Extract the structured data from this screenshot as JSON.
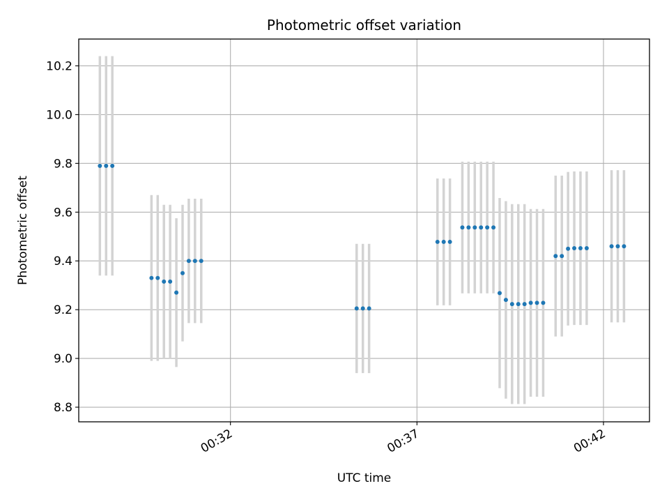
{
  "chart_data": {
    "type": "scatter",
    "title": "Photometric offset variation",
    "xlabel": "UTC time",
    "ylabel": "Photometric offset",
    "xlim": [
      "00:27:56",
      "00:43:14"
    ],
    "ylim": [
      8.74,
      10.31
    ],
    "x_ticks": [
      "00:32",
      "00:37",
      "00:42"
    ],
    "y_ticks": [
      8.8,
      9.0,
      9.2,
      9.4,
      9.6,
      9.8,
      10.0,
      10.2
    ],
    "grid": true,
    "colors": {
      "points": "#1f77b4",
      "errorbars": "#d3d3d3",
      "grid": "#b0b0b0"
    },
    "series": [
      {
        "x": [
          "00:28:30",
          "00:28:40",
          "00:28:50",
          "00:29:53",
          "00:30:03",
          "00:30:13",
          "00:30:23",
          "00:30:33",
          "00:30:43",
          "00:30:53",
          "00:31:03",
          "00:31:13",
          "00:35:23",
          "00:35:33",
          "00:35:43",
          "00:37:33",
          "00:37:43",
          "00:37:53",
          "00:38:13",
          "00:38:23",
          "00:38:33",
          "00:38:43",
          "00:38:53",
          "00:39:03",
          "00:39:13",
          "00:39:23",
          "00:39:33",
          "00:39:43",
          "00:39:53",
          "00:40:03",
          "00:40:13",
          "00:40:23",
          "00:40:43",
          "00:40:53",
          "00:41:03",
          "00:41:13",
          "00:41:23",
          "00:41:33",
          "00:42:13",
          "00:42:23",
          "00:42:33"
        ],
        "y": [
          9.79,
          9.79,
          9.79,
          9.33,
          9.33,
          9.315,
          9.315,
          9.27,
          9.35,
          9.4,
          9.4,
          9.4,
          9.205,
          9.205,
          9.205,
          9.478,
          9.478,
          9.478,
          9.537,
          9.537,
          9.537,
          9.537,
          9.537,
          9.537,
          9.268,
          9.24,
          9.223,
          9.223,
          9.223,
          9.228,
          9.228,
          9.228,
          9.42,
          9.42,
          9.45,
          9.452,
          9.452,
          9.452,
          9.46,
          9.46,
          9.46
        ],
        "err": [
          0.45,
          0.45,
          0.45,
          0.34,
          0.34,
          0.315,
          0.315,
          0.305,
          0.28,
          0.255,
          0.255,
          0.255,
          0.265,
          0.265,
          0.265,
          0.26,
          0.26,
          0.26,
          0.27,
          0.27,
          0.27,
          0.27,
          0.27,
          0.27,
          0.39,
          0.405,
          0.41,
          0.41,
          0.41,
          0.385,
          0.385,
          0.385,
          0.33,
          0.33,
          0.315,
          0.315,
          0.315,
          0.315,
          0.312,
          0.312,
          0.312
        ]
      }
    ]
  }
}
